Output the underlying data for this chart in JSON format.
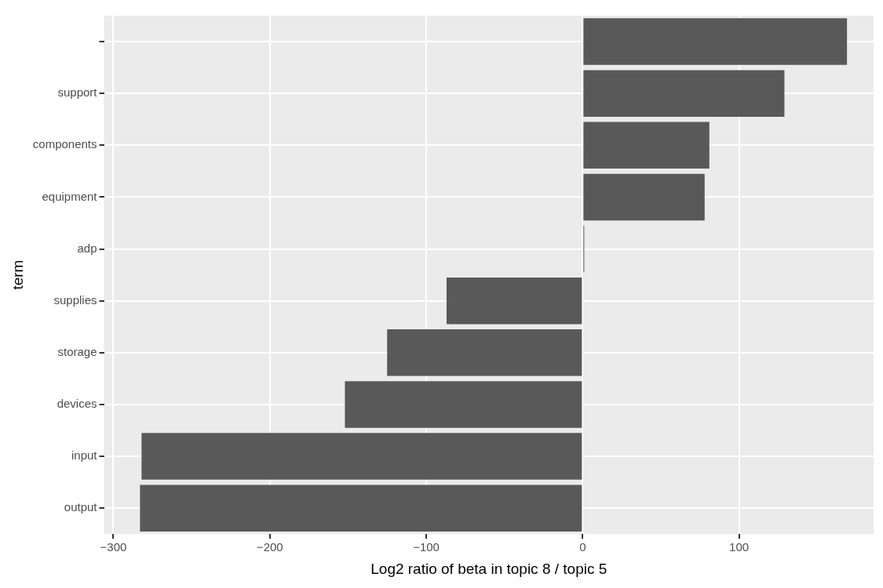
{
  "chart_data": {
    "type": "bar",
    "orientation": "horizontal",
    "xlabel": "Log2 ratio of beta in topic 8 / topic 5",
    "ylabel": "term",
    "categories": [
      null,
      "support",
      "components",
      "equipment",
      "adp",
      "supplies",
      "storage",
      "devices",
      "input",
      "output"
    ],
    "values": [
      169,
      129,
      81,
      78,
      1,
      -87,
      -125,
      -152,
      -282,
      -283
    ],
    "color": "#595959",
    "xlim": [
      -306,
      186
    ],
    "xticks": [
      {
        "value": -300,
        "label": "−300"
      },
      {
        "value": -200,
        "label": "−200"
      },
      {
        "value": -100,
        "label": "−100"
      },
      0,
      100
    ],
    "grid": true,
    "legend": false
  }
}
